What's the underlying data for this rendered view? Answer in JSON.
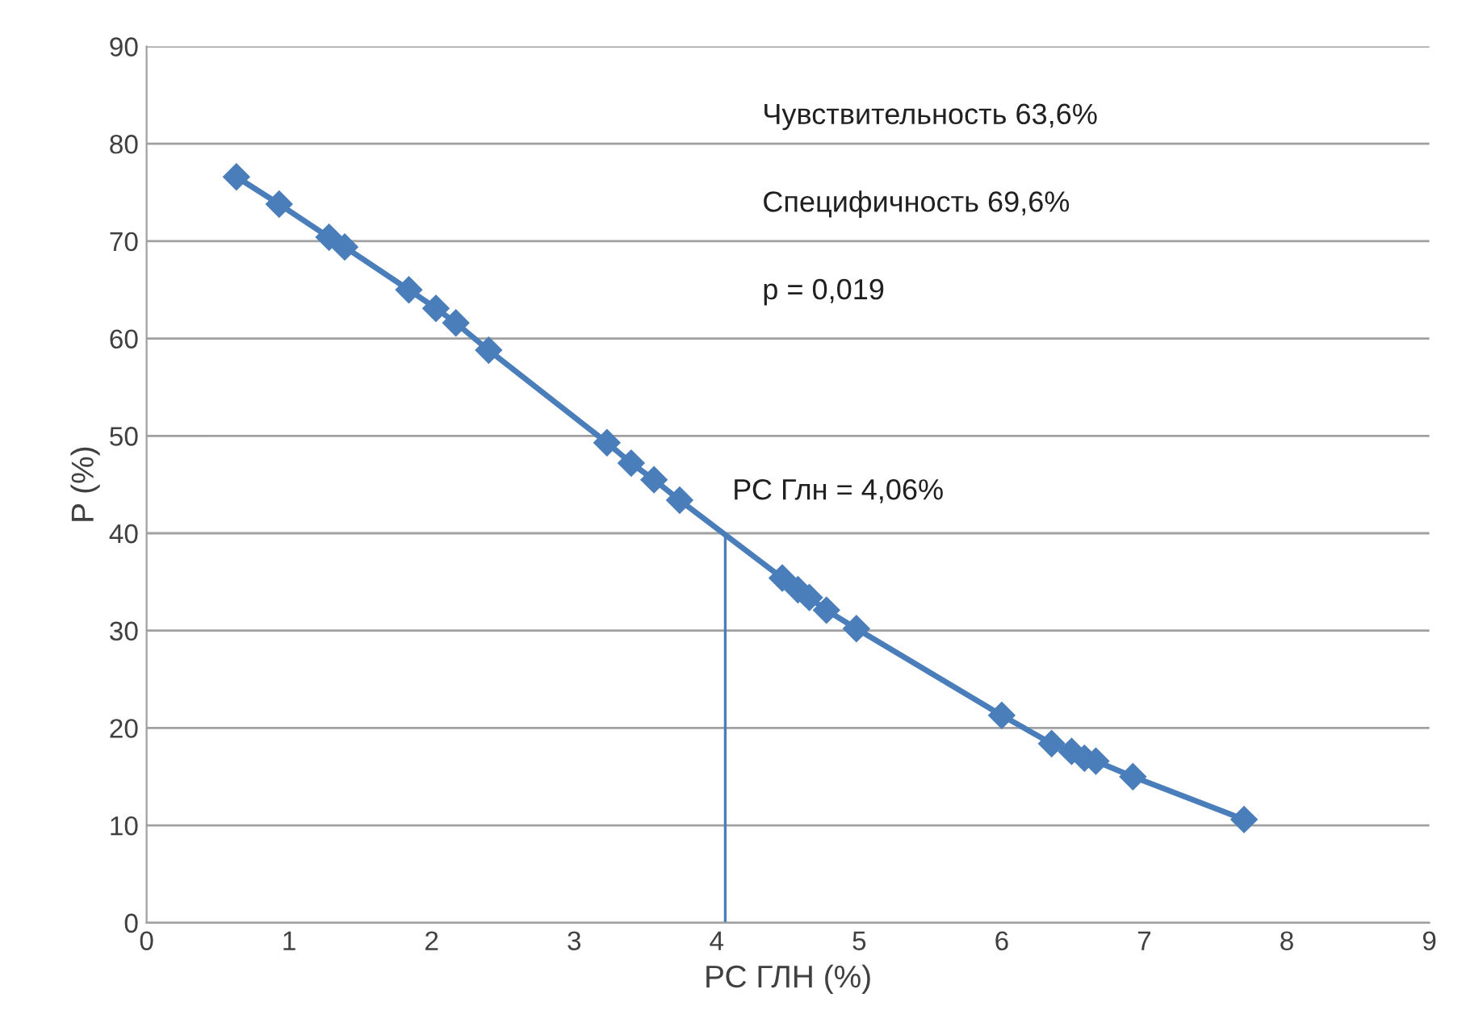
{
  "chart_data": {
    "type": "line",
    "xlabel": "РС ГЛН (%)",
    "ylabel": "P (%)",
    "x": [
      0.63,
      0.93,
      1.28,
      1.39,
      1.84,
      2.03,
      2.17,
      2.4,
      3.23,
      3.4,
      3.56,
      3.74,
      4.46,
      4.57,
      4.65,
      4.77,
      4.98,
      6.0,
      6.35,
      6.49,
      6.58,
      6.66,
      6.92,
      7.7
    ],
    "series": [
      {
        "color": "#4a7ebb",
        "values": [
          76.6,
          73.8,
          70.4,
          69.4,
          65.0,
          63.1,
          61.6,
          58.8,
          49.3,
          47.2,
          45.5,
          43.4,
          35.4,
          34.2,
          33.4,
          32.1,
          30.2,
          21.3,
          18.4,
          17.6,
          16.9,
          16.6,
          15.0,
          10.6
        ]
      }
    ],
    "xlim": [
      0,
      9
    ],
    "xticks": [
      0,
      1,
      2,
      3,
      4,
      5,
      6,
      7,
      8,
      9
    ],
    "ylim": [
      0,
      90
    ],
    "yticks": [
      0,
      10,
      20,
      30,
      40,
      50,
      60,
      70,
      80,
      90
    ],
    "grid": "y",
    "legend": false,
    "marker": "diamond",
    "line_style": "solid",
    "ref_lines": [
      {
        "axis": "x",
        "value": 4.06,
        "label": "РС Глн = 4,06%",
        "color": "#4a7ebb"
      }
    ],
    "annotations": [
      "Чувствительность 63,6%",
      "Специфичность 69,6%",
      "p = 0,019"
    ]
  }
}
